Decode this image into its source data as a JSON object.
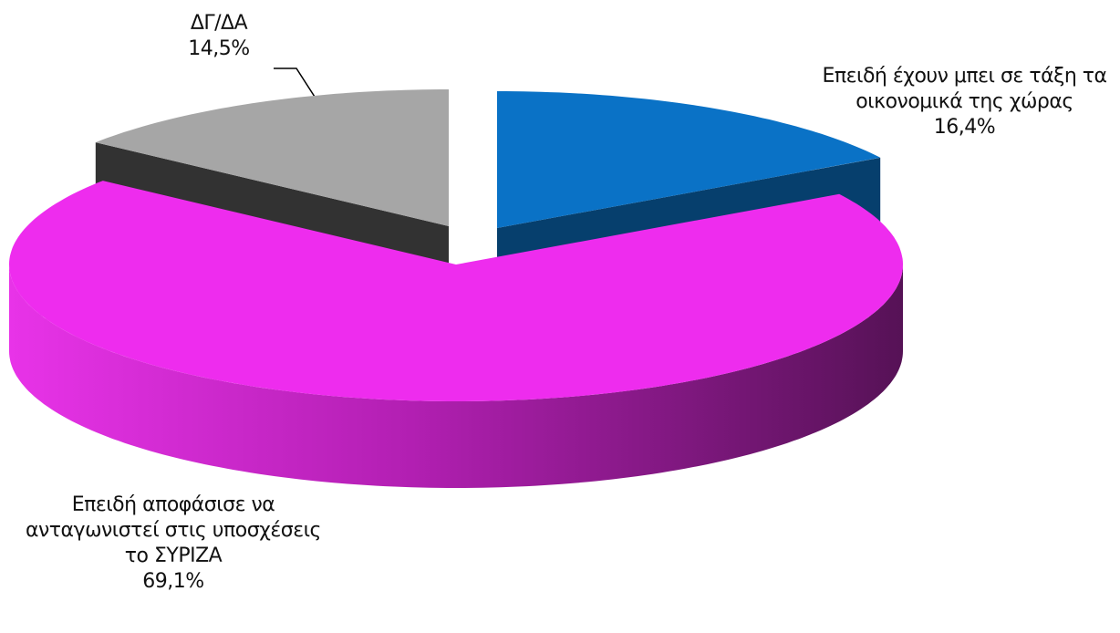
{
  "chart_data": {
    "type": "pie",
    "categories": [
      "Επειδή έχουν μπει σε τάξη τα οικονομικά της χώρας",
      "Επειδή αποφάσισε να ανταγωνιστεί στις υποσχέσεις το ΣΥΡΙΖΑ",
      "ΔΓ/ΔΑ"
    ],
    "values": [
      16.4,
      69.1,
      14.5
    ],
    "value_labels": [
      "16,4%",
      "69,1%",
      "14,5%"
    ],
    "colors": [
      "#0a72c6",
      "#ee2cee",
      "#a6a6a6"
    ]
  }
}
